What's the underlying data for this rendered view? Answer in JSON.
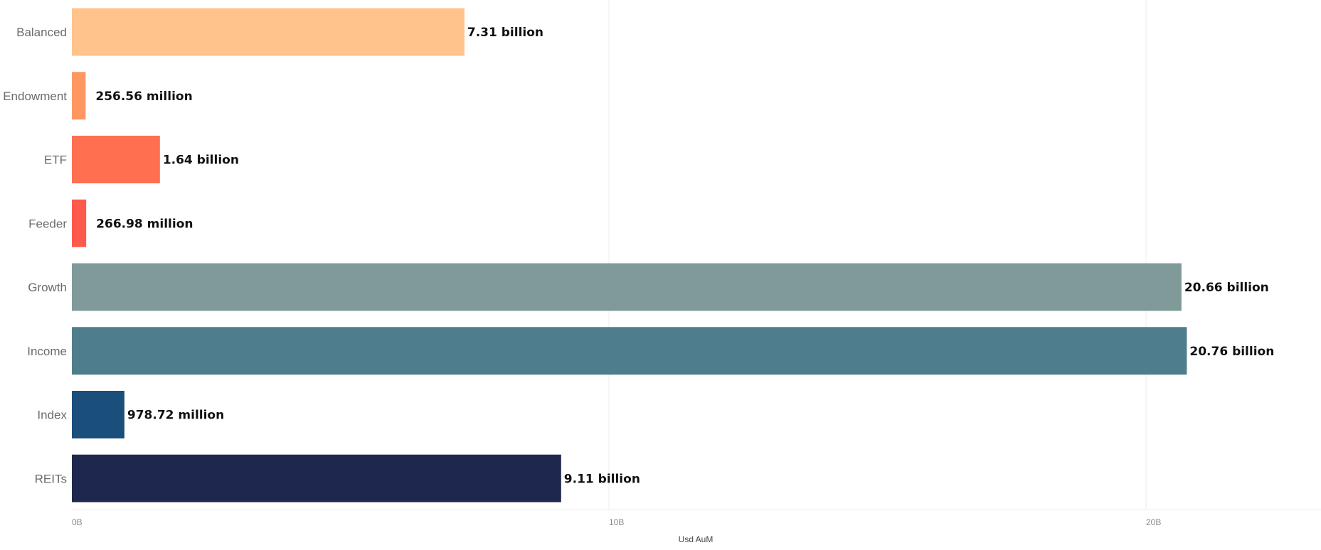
{
  "chart_data": {
    "type": "bar",
    "orientation": "horizontal",
    "categories": [
      "Balanced",
      "Endowment",
      "ETF",
      "Feeder",
      "Growth",
      "Income",
      "Index",
      "REITs"
    ],
    "values": [
      7310000000,
      256560000,
      1640000000,
      266980000,
      20660000000,
      20760000000,
      978720000,
      9110000000
    ],
    "value_labels": [
      "7.31 billion",
      "256.56 million",
      "1.64 billion",
      "266.98 million",
      "20.66 billion",
      "20.76 billion",
      "978.72 million",
      "9.11 billion"
    ],
    "colors": [
      "#ffc38b",
      "#ff9763",
      "#ff6f50",
      "#fe5a4c",
      "#809999",
      "#4e7d8d",
      "#1a4e7b",
      "#1e284e"
    ],
    "xlabel": "Usd AuM",
    "ylabel": "",
    "title": "",
    "xlim": [
      0,
      23000000000
    ],
    "xticks": [
      0,
      10000000000,
      20000000000
    ],
    "xtick_labels": [
      "0B",
      "10B",
      "20B"
    ],
    "grid": "vertical",
    "legend": "none"
  }
}
